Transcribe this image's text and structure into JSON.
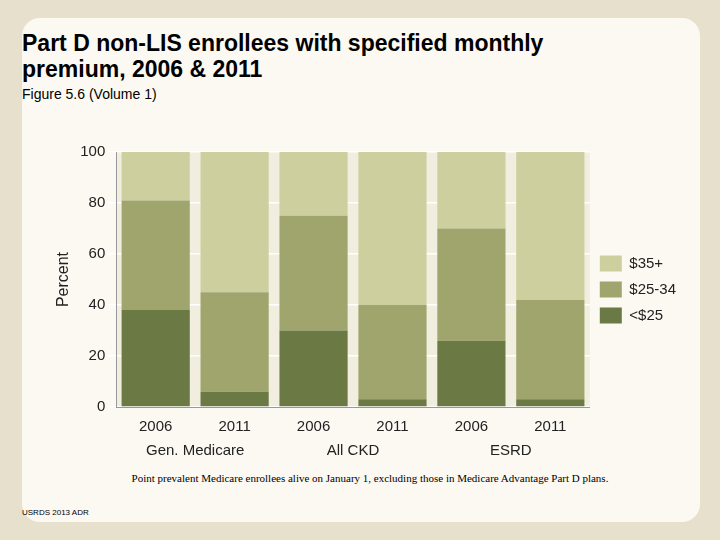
{
  "chart_data": {
    "type": "bar",
    "title": "Part D non-LIS enrollees with specified monthly premium, 2006 & 2011",
    "subtitle": "Figure 5.6 (Volume 1)",
    "y_label": "Percent",
    "categories": [
      "2006",
      "2011",
      "2006",
      "2011",
      "2006",
      "2011"
    ],
    "category_groups": [
      "Gen. Medicare",
      "All CKD",
      "ESRD"
    ],
    "series": [
      {
        "name": "<$25",
        "color": "#6b7a44",
        "values": [
          38,
          6,
          30,
          3,
          26,
          3
        ]
      },
      {
        "name": "$25-34",
        "color": "#a0a56e",
        "values": [
          43,
          39,
          45,
          37,
          44,
          39
        ]
      },
      {
        "name": "$35+",
        "color": "#cdcf9f",
        "values": [
          19,
          55,
          25,
          60,
          30,
          58
        ]
      }
    ],
    "stacked": true,
    "ylim": [
      0,
      100
    ],
    "yticks": [
      0,
      20,
      40,
      60,
      80,
      100
    ],
    "grid": true,
    "legend": "right",
    "footnote": "Point prevalent Medicare enrollees alive on January 1, excluding those in Medicare Advantage Part D plans.",
    "source": "USRDS 2013 ADR"
  }
}
